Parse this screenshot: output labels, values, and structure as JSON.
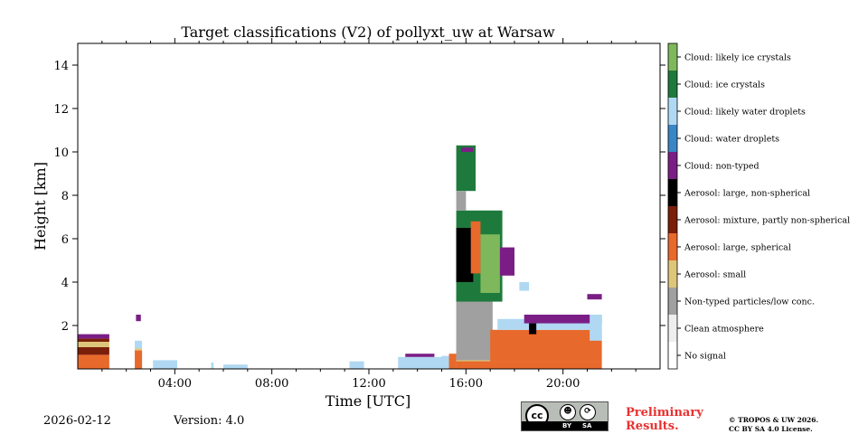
{
  "chart_data": {
    "type": "heatmap",
    "title": "Target classifications (V2) of pollyxt_uw at Warsaw",
    "xlabel": "Time [UTC]",
    "ylabel": "Height [km]",
    "xlim_hours": [
      0,
      24
    ],
    "ylim_km": [
      0,
      15
    ],
    "x_ticks": [
      {
        "value": 4,
        "label": "04:00"
      },
      {
        "value": 8,
        "label": "08:00"
      },
      {
        "value": 12,
        "label": "12:00"
      },
      {
        "value": 16,
        "label": "16:00"
      },
      {
        "value": 20,
        "label": "20:00"
      }
    ],
    "y_ticks": [
      {
        "value": 2,
        "label": "2"
      },
      {
        "value": 4,
        "label": "4"
      },
      {
        "value": 6,
        "label": "6"
      },
      {
        "value": 8,
        "label": "8"
      },
      {
        "value": 10,
        "label": "10"
      },
      {
        "value": 12,
        "label": "12"
      },
      {
        "value": 14,
        "label": "14"
      }
    ],
    "classes": [
      {
        "id": 11,
        "label": "Cloud: likely ice crystals",
        "color": "#7fb85c"
      },
      {
        "id": 10,
        "label": "Cloud: ice crystals",
        "color": "#1e7a3c"
      },
      {
        "id": 9,
        "label": "Cloud: likely water droplets",
        "color": "#b0d8f2"
      },
      {
        "id": 8,
        "label": "Cloud: water droplets",
        "color": "#3a86c4"
      },
      {
        "id": 7,
        "label": "Cloud: non-typed",
        "color": "#7a1e86"
      },
      {
        "id": 6,
        "label": "Aerosol: large, non-spherical",
        "color": "#000000"
      },
      {
        "id": 5,
        "label": "Aerosol: mixture, partly non-spherical",
        "color": "#7a1f0a"
      },
      {
        "id": 4,
        "label": "Aerosol: large, spherical",
        "color": "#e8692c"
      },
      {
        "id": 3,
        "label": "Aerosol: small",
        "color": "#ddc67a"
      },
      {
        "id": 2,
        "label": "Non-typed particles/low conc.",
        "color": "#a0a0a0"
      },
      {
        "id": 1,
        "label": "Clean atmosphere",
        "color": "#eeeeee"
      },
      {
        "id": 0,
        "label": "No signal",
        "color": "#ffffff"
      }
    ],
    "regions": [
      {
        "class": 4,
        "t0": 0.0,
        "t1": 1.3,
        "h0": 0.0,
        "h1": 0.65
      },
      {
        "class": 5,
        "t0": 0.0,
        "t1": 1.3,
        "h0": 0.65,
        "h1": 1.0
      },
      {
        "class": 3,
        "t0": 0.0,
        "t1": 1.3,
        "h0": 1.0,
        "h1": 1.25
      },
      {
        "class": 5,
        "t0": 0.0,
        "t1": 1.3,
        "h0": 1.25,
        "h1": 1.4
      },
      {
        "class": 7,
        "t0": 0.0,
        "t1": 1.3,
        "h0": 1.4,
        "h1": 1.6
      },
      {
        "class": 4,
        "t0": 2.35,
        "t1": 2.65,
        "h0": 0.0,
        "h1": 0.85
      },
      {
        "class": 3,
        "t0": 2.35,
        "t1": 2.65,
        "h0": 0.85,
        "h1": 0.95
      },
      {
        "class": 9,
        "t0": 2.35,
        "t1": 2.65,
        "h0": 0.95,
        "h1": 1.3
      },
      {
        "class": 7,
        "t0": 2.4,
        "t1": 2.6,
        "h0": 2.2,
        "h1": 2.5
      },
      {
        "class": 9,
        "t0": 3.1,
        "t1": 4.1,
        "h0": 0.0,
        "h1": 0.4
      },
      {
        "class": 9,
        "t0": 5.5,
        "t1": 5.6,
        "h0": 0.0,
        "h1": 0.3
      },
      {
        "class": 9,
        "t0": 6.0,
        "t1": 7.0,
        "h0": 0.0,
        "h1": 0.2
      },
      {
        "class": 9,
        "t0": 11.2,
        "t1": 11.8,
        "h0": 0.0,
        "h1": 0.35
      },
      {
        "class": 9,
        "t0": 13.2,
        "t1": 15.3,
        "h0": 0.0,
        "h1": 0.55
      },
      {
        "class": 7,
        "t0": 13.5,
        "t1": 14.7,
        "h0": 0.55,
        "h1": 0.7
      },
      {
        "class": 9,
        "t0": 15.0,
        "t1": 15.5,
        "h0": 0.0,
        "h1": 0.6
      },
      {
        "class": 4,
        "t0": 15.3,
        "t1": 15.6,
        "h0": 0.0,
        "h1": 0.7
      },
      {
        "class": 3,
        "t0": 15.6,
        "t1": 21.6,
        "h0": 0.0,
        "h1": 1.3
      },
      {
        "class": 4,
        "t0": 15.6,
        "t1": 21.6,
        "h0": 0.0,
        "h1": 0.35
      },
      {
        "class": 2,
        "t0": 15.6,
        "t1": 17.1,
        "h0": 0.4,
        "h1": 4.3
      },
      {
        "class": 4,
        "t0": 17.0,
        "t1": 21.6,
        "h0": 0.35,
        "h1": 1.8
      },
      {
        "class": 10,
        "t0": 15.6,
        "t1": 17.5,
        "h0": 3.1,
        "h1": 7.3
      },
      {
        "class": 6,
        "t0": 15.6,
        "t1": 16.3,
        "h0": 4.0,
        "h1": 6.5
      },
      {
        "class": 4,
        "t0": 16.2,
        "t1": 16.6,
        "h0": 4.4,
        "h1": 6.8
      },
      {
        "class": 10,
        "t0": 15.6,
        "t1": 16.4,
        "h0": 8.2,
        "h1": 10.3
      },
      {
        "class": 2,
        "t0": 15.6,
        "t1": 16.0,
        "h0": 7.3,
        "h1": 8.2
      },
      {
        "class": 7,
        "t0": 15.8,
        "t1": 16.3,
        "h0": 10.0,
        "h1": 10.2
      },
      {
        "class": 11,
        "t0": 16.6,
        "t1": 17.4,
        "h0": 3.5,
        "h1": 6.2
      },
      {
        "class": 7,
        "t0": 17.4,
        "t1": 18.0,
        "h0": 4.3,
        "h1": 5.6
      },
      {
        "class": 9,
        "t0": 18.2,
        "t1": 18.6,
        "h0": 3.6,
        "h1": 4.0
      },
      {
        "class": 9,
        "t0": 17.3,
        "t1": 21.6,
        "h0": 1.8,
        "h1": 2.3
      },
      {
        "class": 7,
        "t0": 18.4,
        "t1": 21.6,
        "h0": 2.1,
        "h1": 2.5
      },
      {
        "class": 6,
        "t0": 18.6,
        "t1": 18.9,
        "h0": 1.6,
        "h1": 2.1
      },
      {
        "class": 7,
        "t0": 21.0,
        "t1": 21.6,
        "h0": 3.2,
        "h1": 3.45
      },
      {
        "class": 9,
        "t0": 21.1,
        "t1": 21.6,
        "h0": 1.3,
        "h1": 2.5
      }
    ]
  },
  "footer": {
    "date": "2026-02-12",
    "version": "Version: 4.0",
    "preliminary_line1": "Preliminary",
    "preliminary_line2": "Results.",
    "copyright_line1": "© TROPOS & UW 2026.",
    "copyright_line2": "CC BY SA 4.0 License.",
    "cc_badge": {
      "main": "cc",
      "by": "BY",
      "sa": "SA",
      "by_icon": "person-icon",
      "sa_icon": "share-alike-icon"
    }
  }
}
